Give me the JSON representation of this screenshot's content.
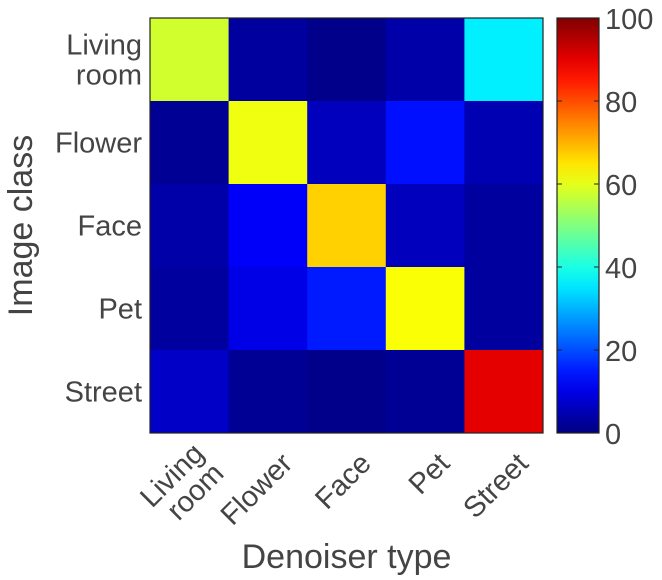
{
  "chart_data": {
    "type": "heatmap",
    "title": "",
    "xlabel": "Denoiser type",
    "ylabel": "Image class",
    "x_categories": [
      [
        "Living",
        "room"
      ],
      [
        "Flower"
      ],
      [
        "Face"
      ],
      [
        "Pet"
      ],
      [
        "Street"
      ]
    ],
    "y_categories": [
      [
        "Living",
        "room"
      ],
      [
        "Flower"
      ],
      [
        "Face"
      ],
      [
        "Pet"
      ],
      [
        "Street"
      ]
    ],
    "values": [
      [
        58,
        3,
        1,
        4,
        36
      ],
      [
        2,
        61,
        6,
        14,
        5
      ],
      [
        4,
        12,
        67,
        6,
        3
      ],
      [
        3,
        10,
        15,
        62,
        3
      ],
      [
        7,
        2,
        1,
        2,
        90
      ]
    ],
    "colormap": "jet",
    "colorbar": {
      "min": 0,
      "max": 100,
      "ticks": [
        "0",
        "20",
        "40",
        "60",
        "80",
        "100"
      ]
    }
  }
}
